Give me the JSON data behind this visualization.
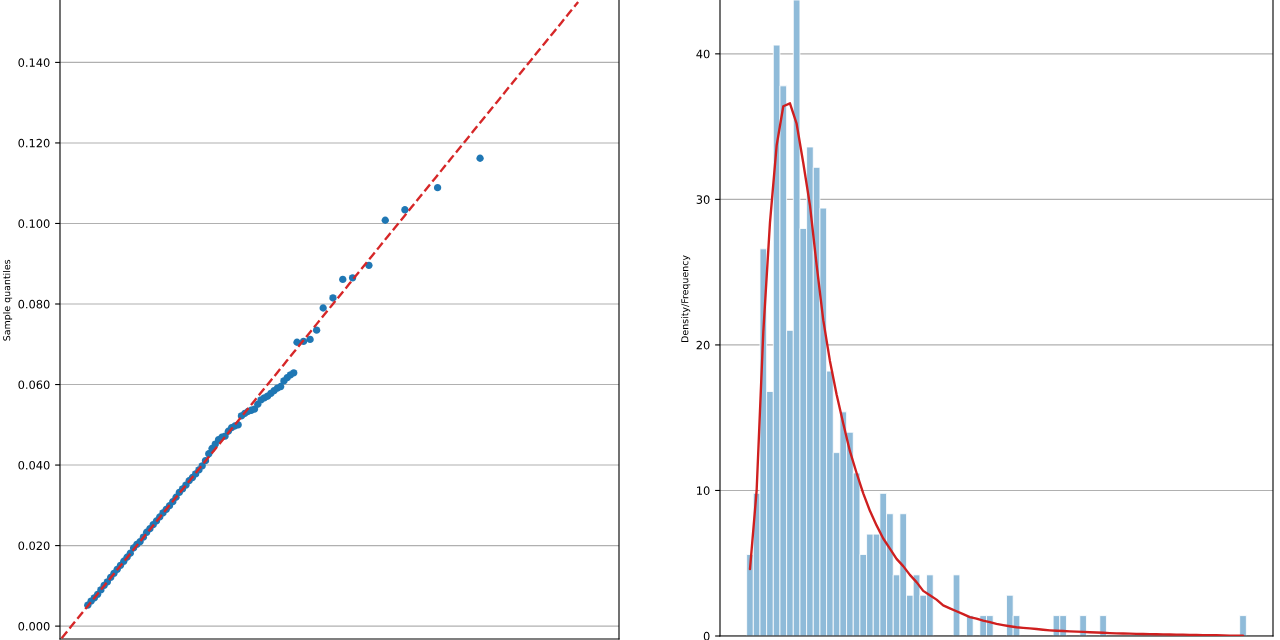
{
  "chart_data": [
    {
      "type": "scatter",
      "ylabel": "Sample quantiles",
      "ylim": [
        -0.0032,
        0.1555
      ],
      "categories": [
        null,
        null,
        null,
        null,
        null,
        null,
        null,
        null,
        null,
        null,
        null,
        null,
        null,
        null,
        null,
        null,
        null,
        null,
        null,
        null,
        null,
        null,
        null,
        null,
        null,
        null,
        null,
        null,
        null,
        null,
        null,
        null,
        null,
        null,
        null,
        null,
        null,
        null,
        null,
        null,
        null,
        null,
        null,
        null,
        null,
        null,
        null,
        null,
        null,
        null,
        null,
        null,
        null,
        null,
        null,
        null,
        null,
        null,
        null,
        null,
        null,
        null,
        null,
        null,
        null,
        null,
        null,
        null,
        null,
        null,
        null,
        null,
        null,
        null,
        null,
        null,
        null,
        null,
        null,
        null,
        null,
        null,
        null,
        null,
        null,
        null,
        null,
        null,
        null,
        null,
        null,
        null,
        null,
        null,
        null,
        null,
        null,
        null,
        null,
        null,
        null,
        null,
        null,
        null,
        null,
        null,
        null,
        null,
        null,
        null,
        null,
        null,
        null,
        null,
        null,
        null,
        null,
        null,
        null,
        null,
        null,
        null,
        null,
        null,
        null,
        null,
        null,
        null,
        null,
        null,
        null,
        null,
        null,
        null,
        null,
        null,
        null,
        null,
        null,
        null,
        null,
        null,
        null,
        null,
        null,
        null,
        null,
        null,
        null,
        null,
        null,
        null,
        null,
        null,
        null,
        null,
        null,
        null,
        null,
        null,
        null,
        null,
        null,
        null,
        null,
        null,
        null,
        null,
        null,
        null,
        null
      ],
      "yticks": [
        {
          "value": 0,
          "label": "0.000"
        },
        {
          "value": 0.02,
          "label": "0.020"
        },
        {
          "value": 0.04,
          "label": "0.040"
        },
        {
          "value": 0.06,
          "label": "0.060"
        },
        {
          "value": 0.08,
          "label": "0.080"
        },
        {
          "value": 0.1,
          "label": "0.100"
        },
        {
          "value": 0.12,
          "label": "0.120"
        },
        {
          "value": 0.14,
          "label": "0.140"
        }
      ],
      "tick_labels": "y",
      "grid": "y",
      "marker": "circle",
      "series": [
        {
          "type": "scatter",
          "color": "#1f77b4",
          "values": [
            null,
            null,
            null,
            null,
            null,
            null,
            null,
            null,
            0.0052,
            0.0062,
            0.007,
            0.0079,
            0.009,
            0.0101,
            0.011,
            0.0121,
            0.0131,
            0.0141,
            0.0151,
            0.0161,
            0.0171,
            0.0181,
            0.0194,
            0.0203,
            0.021,
            0.0221,
            0.0233,
            0.0242,
            0.0252,
            0.0261,
            0.0271,
            0.0281,
            0.029,
            0.0299,
            0.0309,
            0.032,
            0.0332,
            0.0341,
            0.035,
            0.0361,
            0.0369,
            0.0378,
            0.0388,
            0.0398,
            0.0411,
            0.0428,
            0.0441,
            0.0452,
            0.0463,
            0.0469,
            0.0472,
            0.0484,
            0.0493,
            0.0497,
            0.05,
            0.0522,
            0.0528,
            0.0533,
            0.0536,
            0.0539,
            0.0551,
            0.0562,
            0.0567,
            0.0571,
            0.0578,
            0.0585,
            0.0591,
            0.0595,
            0.0609,
            0.0617,
            0.0624,
            0.0629,
            0.0705,
            null,
            0.0707,
            null,
            0.0712,
            null,
            0.0735,
            null,
            0.079,
            null,
            null,
            0.0815,
            null,
            null,
            0.0861,
            null,
            null,
            0.0865,
            null,
            null,
            null,
            null,
            0.0896,
            null,
            null,
            null,
            null,
            0.1008,
            null,
            null,
            null,
            null,
            null,
            0.1034,
            null,
            null,
            null,
            null,
            null,
            null,
            null,
            null,
            null,
            0.1089,
            null,
            null,
            null,
            null,
            null,
            null,
            null,
            null,
            null,
            null,
            null,
            null,
            0.1162,
            null,
            null,
            null,
            null,
            null,
            null,
            null,
            null,
            null,
            null,
            null,
            null,
            null,
            null,
            null,
            null,
            null,
            null,
            null,
            null,
            null,
            null,
            null,
            null,
            null,
            null,
            null,
            null,
            null,
            null,
            null,
            null,
            null,
            null,
            null,
            null,
            null,
            null,
            null,
            null,
            null,
            null
          ]
        },
        {
          "type": "line",
          "color": "#d62728",
          "line_style": "dashed",
          "marker": "none",
          "values": [
            -0.003,
            -0.002,
            -0.001,
            0,
            0.001,
            0.002,
            0.003,
            0.004,
            0.005,
            0.006,
            0.007,
            0.008,
            0.009,
            0.01,
            0.011,
            0.012,
            0.013,
            0.014,
            0.015,
            0.016,
            0.017,
            0.018,
            0.019,
            0.02,
            0.021,
            0.022,
            0.023,
            0.024,
            0.025,
            0.026,
            0.027,
            0.028,
            0.029,
            0.03,
            0.031,
            0.032,
            0.033,
            0.034,
            0.035,
            0.036,
            0.037,
            0.038,
            0.039,
            0.04,
            0.041,
            0.042,
            0.043,
            0.044,
            0.045,
            0.046,
            0.047,
            0.048,
            0.049,
            0.05,
            0.051,
            0.052,
            0.053,
            0.054,
            0.055,
            0.056,
            0.057,
            0.058,
            0.059,
            0.06,
            0.061,
            0.062,
            0.063,
            0.064,
            0.065,
            0.066,
            0.067,
            0.068,
            0.069,
            0.07,
            0.071,
            0.072,
            0.073,
            0.074,
            0.075,
            0.076,
            0.077,
            0.078,
            0.079,
            0.08,
            0.081,
            0.082,
            0.083,
            0.084,
            0.085,
            0.086,
            0.087,
            0.088,
            0.089,
            0.09,
            0.091,
            0.092,
            0.093,
            0.094,
            0.095,
            0.096,
            0.097,
            0.098,
            0.099,
            0.1,
            0.101,
            0.102,
            0.103,
            0.104,
            0.105,
            0.106,
            0.107,
            0.108,
            0.109,
            0.11,
            0.111,
            0.112,
            0.113,
            0.114,
            0.115,
            0.116,
            0.117,
            0.118,
            0.119,
            0.12,
            0.121,
            0.122,
            0.123,
            0.124,
            0.125,
            0.126,
            0.127,
            0.128,
            0.129,
            0.13,
            0.131,
            0.132,
            0.133,
            0.134,
            0.135,
            0.136,
            0.137,
            0.138,
            0.139,
            0.14,
            0.141,
            0.142,
            0.143,
            0.144,
            0.145,
            0.146,
            0.147,
            0.148,
            0.149,
            0.15,
            0.151,
            0.152,
            0.153,
            0.154,
            0.155,
            null,
            null,
            null,
            null,
            null,
            null,
            null,
            null,
            null,
            null,
            null,
            null
          ]
        }
      ]
    },
    {
      "type": "bar",
      "ylabel": "Density/Frequency",
      "ylim": [
        0,
        43.7
      ],
      "categories": [
        null,
        null,
        null,
        null,
        null,
        null,
        null,
        null,
        null,
        null,
        null,
        null,
        null,
        null,
        null,
        null,
        null,
        null,
        null,
        null,
        null,
        null,
        null,
        null,
        null,
        null,
        null,
        null,
        null,
        null,
        null,
        null,
        null,
        null,
        null,
        null,
        null,
        null,
        null,
        null,
        null,
        null,
        null,
        null,
        null,
        null,
        null,
        null,
        null,
        null,
        null,
        null,
        null,
        null,
        null,
        null,
        null,
        null,
        null,
        null,
        null,
        null,
        null,
        null,
        null,
        null,
        null,
        null,
        null,
        null,
        null,
        null,
        null,
        null,
        null,
        null,
        null,
        null,
        null,
        null,
        null,
        null,
        null
      ],
      "yticks": [
        0,
        10,
        20,
        30,
        40
      ],
      "tick_labels": "y",
      "grid": "y",
      "color": "#8fbbd9",
      "values": [
        null,
        null,
        null,
        null,
        5.6,
        9.8,
        26.6,
        16.8,
        40.6,
        37.8,
        21.0,
        43.7,
        28.0,
        33.6,
        32.2,
        29.4,
        18.2,
        12.6,
        15.4,
        14.0,
        11.2,
        5.6,
        7.0,
        7.0,
        9.8,
        8.4,
        4.2,
        8.4,
        2.8,
        4.2,
        2.8,
        4.2,
        0,
        0,
        0,
        4.2,
        0,
        1.4,
        0,
        1.4,
        1.4,
        0,
        0,
        2.8,
        1.4,
        0,
        0,
        0,
        0,
        0,
        1.4,
        1.4,
        0,
        0,
        1.4,
        0,
        0,
        1.4,
        0,
        0,
        0,
        0,
        0,
        0,
        0,
        0,
        0,
        0,
        0,
        0,
        0,
        0,
        0,
        0,
        0,
        0,
        0,
        0,
        1.4,
        null,
        null,
        null,
        null
      ],
      "series": [
        {
          "type": "line",
          "color": "#cf1f1f",
          "line_style": "solid",
          "marker": "none",
          "values": [
            null,
            null,
            null,
            null,
            4.6,
            10.0,
            20.9,
            28.4,
            33.7,
            36.4,
            36.6,
            35.2,
            32.5,
            29.6,
            25.5,
            21.7,
            18.9,
            16.6,
            14.6,
            12.7,
            11.2,
            9.8,
            8.6,
            7.6,
            6.7,
            6.0,
            5.3,
            4.8,
            4.2,
            3.7,
            3.1,
            2.8,
            2.5,
            2.1,
            1.9,
            1.7,
            1.5,
            1.3,
            1.2,
            1.05,
            0.95,
            0.83,
            0.75,
            0.67,
            0.6,
            0.56,
            0.52,
            0.48,
            0.43,
            0.39,
            0.36,
            0.34,
            0.32,
            0.3,
            0.28,
            0.26,
            0.24,
            0.22,
            0.2,
            0.18,
            0.17,
            0.16,
            0.15,
            0.14,
            0.13,
            0.12,
            0.11,
            0.1,
            0.09,
            0.09,
            0.08,
            0.07,
            0.06,
            0.05,
            0.05,
            0.04,
            0.03,
            0.03,
            0.02,
            null,
            null,
            null,
            null
          ]
        }
      ]
    }
  ]
}
